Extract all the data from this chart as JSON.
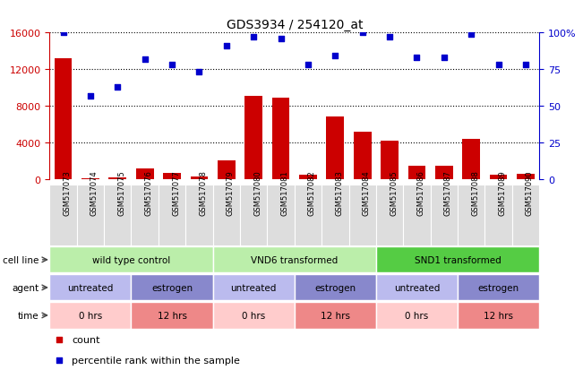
{
  "title": "GDS3934 / 254120_at",
  "samples": [
    "GSM517073",
    "GSM517074",
    "GSM517075",
    "GSM517076",
    "GSM517077",
    "GSM517078",
    "GSM517079",
    "GSM517080",
    "GSM517081",
    "GSM517082",
    "GSM517083",
    "GSM517084",
    "GSM517085",
    "GSM517086",
    "GSM517087",
    "GSM517088",
    "GSM517089",
    "GSM517090"
  ],
  "counts": [
    13200,
    100,
    150,
    1200,
    650,
    300,
    2000,
    9100,
    8900,
    500,
    6800,
    5200,
    4200,
    1400,
    1400,
    4400,
    500,
    550
  ],
  "percentiles": [
    100,
    57,
    63,
    82,
    78,
    73,
    91,
    97,
    96,
    78,
    84,
    100,
    97,
    83,
    83,
    99,
    78,
    78
  ],
  "bar_color": "#cc0000",
  "dot_color": "#0000cc",
  "ylim_left": [
    0,
    16000
  ],
  "ylim_right": [
    0,
    100
  ],
  "yticks_left": [
    0,
    4000,
    8000,
    12000,
    16000
  ],
  "yticks_right": [
    0,
    25,
    50,
    75,
    100
  ],
  "cell_line_groups": [
    {
      "label": "wild type control",
      "start": 0,
      "end": 6,
      "color": "#bbeeaa"
    },
    {
      "label": "VND6 transformed",
      "start": 6,
      "end": 12,
      "color": "#bbeeaa"
    },
    {
      "label": "SND1 transformed",
      "start": 12,
      "end": 18,
      "color": "#55cc44"
    }
  ],
  "agent_groups": [
    {
      "label": "untreated",
      "start": 0,
      "end": 3,
      "color": "#bbbbee"
    },
    {
      "label": "estrogen",
      "start": 3,
      "end": 6,
      "color": "#8888cc"
    },
    {
      "label": "untreated",
      "start": 6,
      "end": 9,
      "color": "#bbbbee"
    },
    {
      "label": "estrogen",
      "start": 9,
      "end": 12,
      "color": "#8888cc"
    },
    {
      "label": "untreated",
      "start": 12,
      "end": 15,
      "color": "#bbbbee"
    },
    {
      "label": "estrogen",
      "start": 15,
      "end": 18,
      "color": "#8888cc"
    }
  ],
  "time_groups": [
    {
      "label": "0 hrs",
      "start": 0,
      "end": 3,
      "color": "#ffcccc"
    },
    {
      "label": "12 hrs",
      "start": 3,
      "end": 6,
      "color": "#ee8888"
    },
    {
      "label": "0 hrs",
      "start": 6,
      "end": 9,
      "color": "#ffcccc"
    },
    {
      "label": "12 hrs",
      "start": 9,
      "end": 12,
      "color": "#ee8888"
    },
    {
      "label": "0 hrs",
      "start": 12,
      "end": 15,
      "color": "#ffcccc"
    },
    {
      "label": "12 hrs",
      "start": 15,
      "end": 18,
      "color": "#ee8888"
    }
  ],
  "legend_count_label": "count",
  "legend_pct_label": "percentile rank within the sample",
  "row_label_cell": "cell line",
  "row_label_agent": "agent",
  "row_label_time": "time",
  "xtick_bg": "#dddddd",
  "spine_color_left": "#cc0000",
  "spine_color_right": "#0000cc",
  "grid_color": "#000000",
  "background_color": "#ffffff"
}
